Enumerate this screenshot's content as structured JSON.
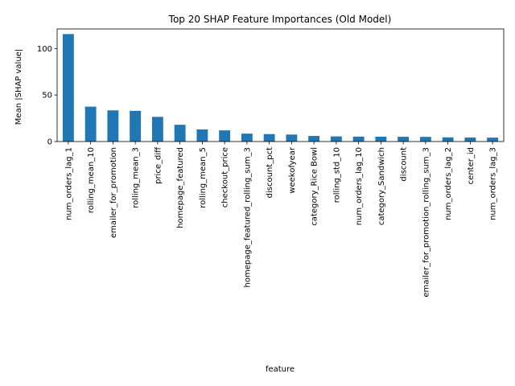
{
  "chart_data": {
    "type": "bar",
    "title": "Top 20 SHAP Feature Importances (Old Model)",
    "xlabel": "feature",
    "ylabel": "Mean |SHAP value|",
    "ylim": [
      0,
      121
    ],
    "yticks": [
      0,
      50,
      100
    ],
    "grid": false,
    "legend": "none",
    "bar_color": "#1f77b4",
    "categories": [
      "num_orders_lag_1",
      "rolling_mean_10",
      "emailer_for_promotion",
      "rolling_mean_3",
      "price_diff",
      "homepage_featured",
      "rolling_mean_5",
      "checkout_price",
      "homepage_featured_rolling_sum_3",
      "discount_pct",
      "weekofyear",
      "category_Rice Bowl",
      "rolling_std_10",
      "num_orders_lag_10",
      "category_Sandwich",
      "discount",
      "emailer_for_promotion_rolling_sum_3",
      "num_orders_lag_2",
      "center_id",
      "num_orders_lag_3"
    ],
    "values": [
      115.5,
      37.5,
      33.5,
      33.0,
      26.5,
      18.0,
      13.0,
      12.0,
      8.5,
      8.0,
      7.5,
      6.0,
      5.5,
      5.3,
      5.2,
      5.1,
      5.0,
      4.5,
      4.3,
      4.2
    ]
  }
}
